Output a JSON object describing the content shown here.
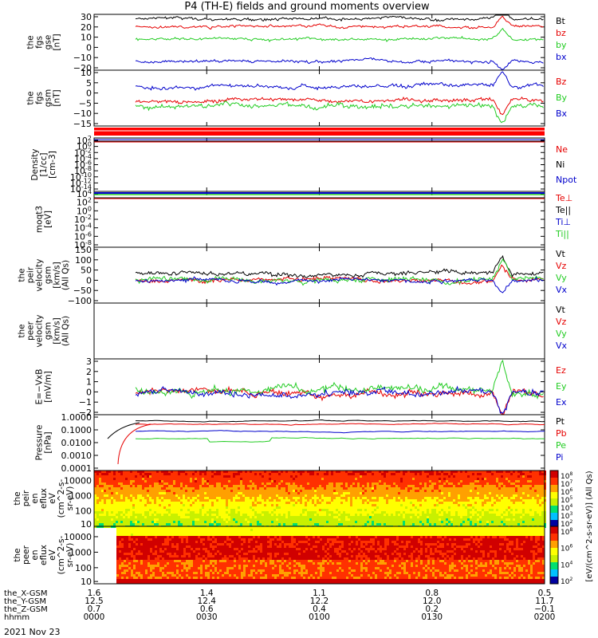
{
  "title": "P4 (TH-E) fields and ground moments overview",
  "date_label": "2021 Nov 23",
  "colors": {
    "black": "#000000",
    "red": "#e60000",
    "green": "#22cc22",
    "blue": "#0000cc"
  },
  "chart_data": [
    {
      "id": "fgs_gse",
      "type": "line",
      "ylabel": [
        "the",
        "fgs",
        "gse",
        "[nT]"
      ],
      "ylim": [
        -20,
        30
      ],
      "yticks": [
        "30",
        "20",
        "10",
        "0",
        "−10",
        "−20"
      ],
      "series": [
        {
          "name": "Bt",
          "color": "black",
          "base": 26,
          "noise": 1.5
        },
        {
          "name": "bz",
          "color": "red",
          "base": 19,
          "noise": 1.5
        },
        {
          "name": "by",
          "color": "green",
          "base": 8,
          "noise": 1.5
        },
        {
          "name": "bx",
          "color": "blue",
          "base": -12,
          "noise": 1.5
        }
      ]
    },
    {
      "id": "fgs_gsm",
      "type": "line",
      "ylabel": [
        "the",
        "fgs",
        "gsm",
        "[nT]"
      ],
      "ylim": [
        -17,
        11
      ],
      "yticks": [
        "10",
        "5",
        "0",
        "−5",
        "−10",
        "−15"
      ],
      "series": [
        {
          "name": "Bz",
          "color": "red",
          "base": -4,
          "noise": 1.2
        },
        {
          "name": "By",
          "color": "green",
          "base": -7,
          "noise": 1.5
        },
        {
          "name": "Bx",
          "color": "blue",
          "base": 3,
          "noise": 1.2
        }
      ]
    },
    {
      "id": "flag_bar",
      "type": "bar",
      "ylabel": []
    },
    {
      "id": "density",
      "type": "line",
      "log": true,
      "ylabel": [
        "Density",
        "[1/cc]",
        "[cm-3]"
      ],
      "yticks": [
        "10^2",
        "10^0",
        "10^-2",
        "10^-4",
        "10^-6",
        "10^-8",
        "10^-10",
        "10^-12",
        "10^-14"
      ],
      "series": [
        {
          "name": "Ne",
          "color": "red"
        },
        {
          "name": "Ni",
          "color": "black"
        },
        {
          "name": "Npot",
          "color": "blue"
        }
      ]
    },
    {
      "id": "temperature",
      "type": "line",
      "log": true,
      "ylabel": [
        "moqt3",
        "[eV]"
      ],
      "yticks": [
        "10^4",
        "10^2",
        "10^0",
        "10^-2",
        "10^-4",
        "10^-6",
        "10^-8"
      ],
      "series": [
        {
          "name": "Te⊥",
          "color": "red"
        },
        {
          "name": "Te||",
          "color": "black"
        },
        {
          "name": "Ti⊥",
          "color": "blue"
        },
        {
          "name": "Ti||",
          "color": "green"
        }
      ]
    },
    {
      "id": "peir_velocity",
      "type": "line",
      "ylabel": [
        "the",
        "peir",
        "velocity",
        "gsm",
        "[km/s]",
        "(All Qs)"
      ],
      "ylim": [
        -100,
        150
      ],
      "yticks": [
        "150",
        "100",
        "50",
        "0",
        "−50",
        "−100"
      ],
      "series": [
        {
          "name": "Vt",
          "color": "black",
          "base": 35,
          "noise": 12
        },
        {
          "name": "Vz",
          "color": "red",
          "base": 5,
          "noise": 12
        },
        {
          "name": "Vy",
          "color": "green",
          "base": 5,
          "noise": 14
        },
        {
          "name": "Vx",
          "color": "blue",
          "base": 0,
          "noise": 10
        }
      ]
    },
    {
      "id": "peer_velocity",
      "type": "line",
      "ylabel": [
        "the",
        "peer",
        "velocity",
        "gsm",
        "[km/s]",
        "(All Qs)"
      ],
      "series": [
        {
          "name": "Vt",
          "color": "black"
        },
        {
          "name": "Vz",
          "color": "red"
        },
        {
          "name": "Vy",
          "color": "green"
        },
        {
          "name": "Vx",
          "color": "blue"
        }
      ]
    },
    {
      "id": "efield",
      "type": "line",
      "ylabel": [
        "E=−VxB",
        "[mV/m]"
      ],
      "ylim": [
        -2,
        3
      ],
      "yticks": [
        "3",
        "2",
        "1",
        "0",
        "−1",
        "−2"
      ],
      "series": [
        {
          "name": "Ez",
          "color": "red",
          "base": 0,
          "noise": 0.35
        },
        {
          "name": "Ey",
          "color": "green",
          "base": 0.2,
          "noise": 0.45
        },
        {
          "name": "Ex",
          "color": "blue",
          "base": -0.1,
          "noise": 0.35
        }
      ]
    },
    {
      "id": "pressure",
      "type": "line",
      "log": true,
      "ylabel": [
        "Pressure",
        "[nPa]"
      ],
      "yticks": [
        "1.0000",
        "0.1000",
        "0.0100",
        "0.0010",
        "0.0001"
      ],
      "series": [
        {
          "name": "Pt",
          "color": "black"
        },
        {
          "name": "Pb",
          "color": "red"
        },
        {
          "name": "Pe",
          "color": "green"
        },
        {
          "name": "Pi",
          "color": "blue"
        }
      ]
    },
    {
      "id": "peir_en_eflux",
      "type": "heatmap",
      "ylabel": [
        "the",
        "peir",
        "en",
        "eflux",
        "eV",
        "(cm^2-s-",
        "sr-eV)"
      ],
      "yticks": [
        "10000",
        "1000",
        "100",
        "10"
      ],
      "colorbar_label": "[eV/(cm^2-s-sr-eV)] (All Qs)",
      "colorbar_ticks": [
        "10^8",
        "10^7",
        "10^6",
        "10^5",
        "10^4",
        "10^3",
        "10^2"
      ]
    },
    {
      "id": "peer_en_eflux",
      "type": "heatmap",
      "ylabel": [
        "the",
        "peer",
        "en",
        "eflux",
        "eV",
        "(cm^2-s-",
        "sr-eV)"
      ],
      "yticks": [
        "10000",
        "1000",
        "100",
        "10"
      ],
      "colorbar_label": "[eV/(cm^2-s-sr-eV)] (All Qs)",
      "colorbar_ticks": [
        "10^8",
        "10^6",
        "10^4",
        "10^2"
      ]
    }
  ],
  "x_axis": {
    "rows": [
      {
        "label": "the_X-GSM",
        "values": [
          "1.6",
          "1.4",
          "1.1",
          "0.8",
          "0.5"
        ]
      },
      {
        "label": "the_Y-GSM",
        "values": [
          "12.5",
          "12.4",
          "12.2",
          "12.0",
          "11.7"
        ]
      },
      {
        "label": "the_Z-GSM",
        "values": [
          "0.7",
          "0.6",
          "0.4",
          "0.2",
          "−0.1"
        ]
      },
      {
        "label": "hhmm",
        "values": [
          "0000",
          "0030",
          "0100",
          "0130",
          "0200"
        ]
      }
    ]
  }
}
